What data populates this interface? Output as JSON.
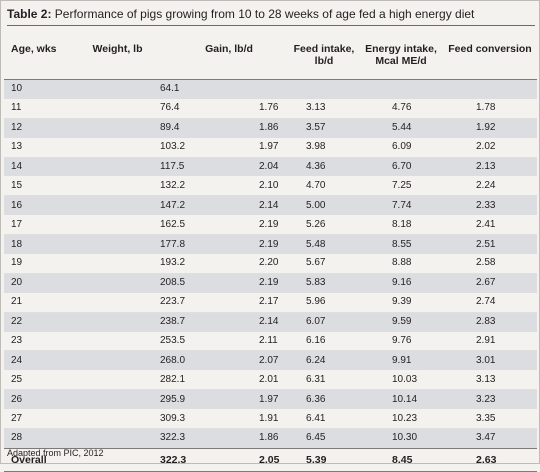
{
  "title": {
    "label": "Table 2:",
    "text": " Performance of pigs growing from 10 to 28 weeks of age fed a high energy diet"
  },
  "columns": [
    "Age, wks",
    "Weight, lb",
    "Gain, lb/d",
    "Feed intake,\nlb/d",
    "Energy intake,\nMcal ME/d",
    "Feed conversion"
  ],
  "rows": [
    [
      "10",
      "64.1",
      "",
      "",
      "",
      ""
    ],
    [
      "11",
      "76.4",
      "1.76",
      "3.13",
      "4.76",
      "1.78"
    ],
    [
      "12",
      "89.4",
      "1.86",
      "3.57",
      "5.44",
      "1.92"
    ],
    [
      "13",
      "103.2",
      "1.97",
      "3.98",
      "6.09",
      "2.02"
    ],
    [
      "14",
      "117.5",
      "2.04",
      "4.36",
      "6.70",
      "2.13"
    ],
    [
      "15",
      "132.2",
      "2.10",
      "4.70",
      "7.25",
      "2.24"
    ],
    [
      "16",
      "147.2",
      "2.14",
      "5.00",
      "7.74",
      "2.33"
    ],
    [
      "17",
      "162.5",
      "2.19",
      "5.26",
      "8.18",
      "2.41"
    ],
    [
      "18",
      "177.8",
      "2.19",
      "5.48",
      "8.55",
      "2.51"
    ],
    [
      "19",
      "193.2",
      "2.20",
      "5.67",
      "8.88",
      "2.58"
    ],
    [
      "20",
      "208.5",
      "2.19",
      "5.83",
      "9.16",
      "2.67"
    ],
    [
      "21",
      "223.7",
      "2.17",
      "5.96",
      "9.39",
      "2.74"
    ],
    [
      "22",
      "238.7",
      "2.14",
      "6.07",
      "9.59",
      "2.83"
    ],
    [
      "23",
      "253.5",
      "2.11",
      "6.16",
      "9.76",
      "2.91"
    ],
    [
      "24",
      "268.0",
      "2.07",
      "6.24",
      "9.91",
      "3.01"
    ],
    [
      "25",
      "282.1",
      "2.01",
      "6.31",
      "10.03",
      "3.13"
    ],
    [
      "26",
      "295.9",
      "1.97",
      "6.36",
      "10.14",
      "3.23"
    ],
    [
      "27",
      "309.3",
      "1.91",
      "6.41",
      "10.23",
      "3.35"
    ],
    [
      "28",
      "322.3",
      "1.86",
      "6.45",
      "10.30",
      "3.47"
    ]
  ],
  "overall": [
    "Overall",
    "322.3",
    "2.05",
    "5.39",
    "8.45",
    "2.63"
  ],
  "source": "Adapted from PIC, 2012",
  "colors": {
    "background": "#f4f2ef",
    "row_shade": "#dcdde1",
    "rule": "#7c7976",
    "text": "#231f20"
  }
}
